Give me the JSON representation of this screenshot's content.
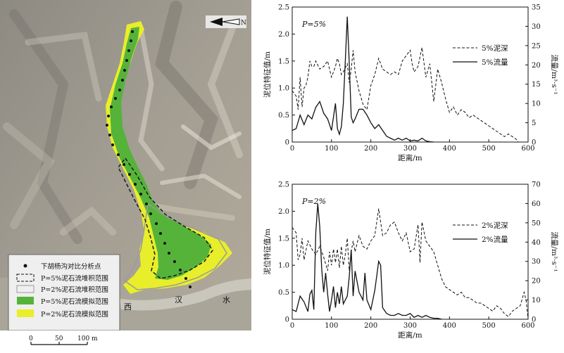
{
  "map": {
    "north_label": "N",
    "river_chars": [
      "西",
      "汉",
      "水"
    ],
    "legend": [
      {
        "symbol": "dot",
        "label": "下胡杨沟对比分析点"
      },
      {
        "symbol": "dashed",
        "label": "P=5%泥石流堆积范围"
      },
      {
        "symbol": "gray-outline",
        "label": "P=2%泥石流堆积范围"
      },
      {
        "symbol": "green-fill",
        "label": "P=5%泥石流模拟范围",
        "color": "#55b33a"
      },
      {
        "symbol": "yellow-fill",
        "label": "P=2%泥石流模拟范围",
        "color": "#e8ee2a"
      }
    ],
    "scale": {
      "ticks": [
        "0",
        "50",
        "100 m"
      ]
    }
  },
  "chart_data": [
    {
      "type": "line",
      "annotation": "P=5%",
      "xlabel": "距离/m",
      "ylabel": "泥位特征值/m",
      "y2label": "流量/m³·s⁻¹",
      "xlim": [
        0,
        600
      ],
      "ylim": [
        0,
        2.5
      ],
      "y2lim": [
        0,
        35
      ],
      "xticks": [
        "0",
        "100",
        "200",
        "300",
        "400",
        "500",
        "600"
      ],
      "yticks": [
        "0",
        "0.5",
        "1.0",
        "1.5",
        "2.0",
        "2.5"
      ],
      "y2ticks": [
        "0",
        "5",
        "10",
        "15",
        "20",
        "25",
        "30",
        "35"
      ],
      "legend_position": "top-right",
      "series": [
        {
          "name": "5%泥深",
          "style": "dashed",
          "axis": "left",
          "x": [
            0,
            10,
            15,
            20,
            25,
            30,
            35,
            40,
            45,
            50,
            55,
            60,
            70,
            80,
            90,
            100,
            110,
            115,
            120,
            125,
            130,
            140,
            145,
            150,
            155,
            160,
            170,
            180,
            190,
            200,
            210,
            220,
            230,
            240,
            250,
            260,
            270,
            280,
            290,
            300,
            305,
            310,
            320,
            330,
            340,
            350,
            360,
            370,
            380,
            390,
            400,
            410,
            420,
            430,
            440,
            450,
            460,
            470,
            480,
            490,
            500,
            510,
            520,
            530,
            540,
            550,
            560,
            570,
            575
          ],
          "y": [
            0.95,
            0.85,
            0.6,
            1.2,
            0.65,
            1.0,
            1.05,
            1.2,
            1.5,
            1.4,
            1.4,
            1.5,
            1.35,
            1.4,
            1.5,
            1.2,
            1.4,
            1.55,
            1.45,
            1.25,
            1.3,
            1.45,
            1.1,
            1.35,
            1.7,
            1.3,
            0.95,
            0.7,
            0.6,
            1.05,
            1.25,
            1.55,
            1.35,
            1.3,
            1.25,
            1.3,
            1.25,
            1.5,
            1.6,
            1.7,
            1.45,
            1.3,
            1.4,
            1.75,
            1.2,
            1.45,
            0.75,
            1.35,
            1.1,
            0.8,
            0.55,
            0.65,
            0.5,
            0.6,
            0.55,
            0.45,
            0.5,
            0.45,
            0.4,
            0.35,
            0.3,
            0.25,
            0.2,
            0.15,
            0.1,
            0.15,
            0.1,
            0.05,
            0
          ]
        },
        {
          "name": "5%流量",
          "style": "solid",
          "axis": "right",
          "x": [
            0,
            10,
            20,
            30,
            40,
            50,
            60,
            70,
            80,
            90,
            100,
            110,
            115,
            120,
            125,
            130,
            135,
            140,
            145,
            150,
            155,
            160,
            170,
            180,
            190,
            200,
            210,
            220,
            230,
            240,
            250,
            260,
            270,
            280,
            290,
            300,
            310,
            320,
            330,
            340,
            350,
            360
          ],
          "y": [
            3,
            3.5,
            7,
            4.5,
            7,
            6,
            9,
            10.5,
            7.5,
            6,
            3,
            10,
            3.5,
            2,
            4,
            10,
            21,
            32.5,
            20.5,
            6.5,
            5,
            6,
            8.5,
            8.5,
            7,
            5,
            3.5,
            4.5,
            3,
            1.5,
            1,
            0.5,
            1,
            0.5,
            1,
            0.3,
            0.5,
            0.3,
            1,
            0.3,
            0.1,
            0
          ]
        }
      ]
    },
    {
      "type": "line",
      "annotation": "P=2%",
      "xlabel": "距离/m",
      "ylabel": "泥位特征值/m",
      "y2label": "流量/m³·s⁻¹",
      "xlim": [
        0,
        600
      ],
      "ylim": [
        0,
        2.5
      ],
      "y2lim": [
        0,
        70
      ],
      "xticks": [
        "0",
        "100",
        "200",
        "300",
        "400",
        "500",
        "600"
      ],
      "yticks": [
        "0",
        "0.5",
        "1.0",
        "1.5",
        "2.0",
        "2.5"
      ],
      "y2ticks": [
        "0",
        "10",
        "20",
        "30",
        "40",
        "50",
        "60",
        "70"
      ],
      "legend_position": "top-right",
      "series": [
        {
          "name": "2%泥深",
          "style": "dashed",
          "axis": "left",
          "x": [
            0,
            10,
            15,
            20,
            25,
            30,
            40,
            50,
            60,
            70,
            80,
            90,
            95,
            100,
            105,
            110,
            115,
            120,
            125,
            130,
            135,
            140,
            145,
            150,
            155,
            160,
            170,
            180,
            190,
            200,
            210,
            220,
            225,
            230,
            240,
            250,
            260,
            270,
            280,
            290,
            300,
            310,
            320,
            325,
            330,
            340,
            350,
            360,
            370,
            380,
            390,
            400,
            410,
            420,
            430,
            440,
            450,
            460,
            470,
            480,
            490,
            500,
            510,
            520,
            530,
            540,
            550,
            560,
            570,
            580,
            590,
            595,
            600
          ],
          "y": [
            1.7,
            1.6,
            1.1,
            1.2,
            1.5,
            1.1,
            1.45,
            1.3,
            1.2,
            1.35,
            1.15,
            0.9,
            1.25,
            1.0,
            1.3,
            1.05,
            1.3,
            0.95,
            1.35,
            1.0,
            1.2,
            1.5,
            0.9,
            1.25,
            1.45,
            1.25,
            1.55,
            1.35,
            1.3,
            1.45,
            1.55,
            2.05,
            1.8,
            1.55,
            1.6,
            1.75,
            1.8,
            1.6,
            1.45,
            1.6,
            1.25,
            1.3,
            1.75,
            1.05,
            1.8,
            1.45,
            1.35,
            1.25,
            1.0,
            0.75,
            0.6,
            0.55,
            0.5,
            0.45,
            0.5,
            0.4,
            0.4,
            0.35,
            0.3,
            0.3,
            0.25,
            0.2,
            0.15,
            0.25,
            0.2,
            0.1,
            0.05,
            0.15,
            0.2,
            0.25,
            0.5,
            0.35,
            0
          ]
        },
        {
          "name": "2%流量",
          "style": "solid",
          "axis": "right",
          "x": [
            0,
            10,
            20,
            30,
            40,
            45,
            50,
            55,
            60,
            65,
            70,
            75,
            80,
            85,
            90,
            95,
            100,
            105,
            110,
            115,
            120,
            125,
            130,
            140,
            145,
            150,
            155,
            160,
            170,
            180,
            185,
            190,
            200,
            210,
            220,
            225,
            230,
            240,
            250,
            260,
            270,
            280,
            290,
            300,
            310,
            320,
            330,
            340,
            350,
            360,
            370,
            380
          ],
          "y": [
            5,
            4,
            12,
            9,
            4,
            13,
            15,
            5,
            45,
            60,
            48,
            26,
            14,
            24,
            13,
            4,
            10,
            17,
            6,
            14,
            8,
            17,
            8,
            12,
            22,
            36,
            12,
            25,
            14,
            10,
            24,
            10,
            5,
            15,
            30,
            28,
            6,
            3,
            2,
            2,
            3,
            2,
            2,
            3,
            1,
            2,
            1,
            2,
            1,
            0.5,
            0.5,
            0
          ]
        }
      ]
    }
  ]
}
